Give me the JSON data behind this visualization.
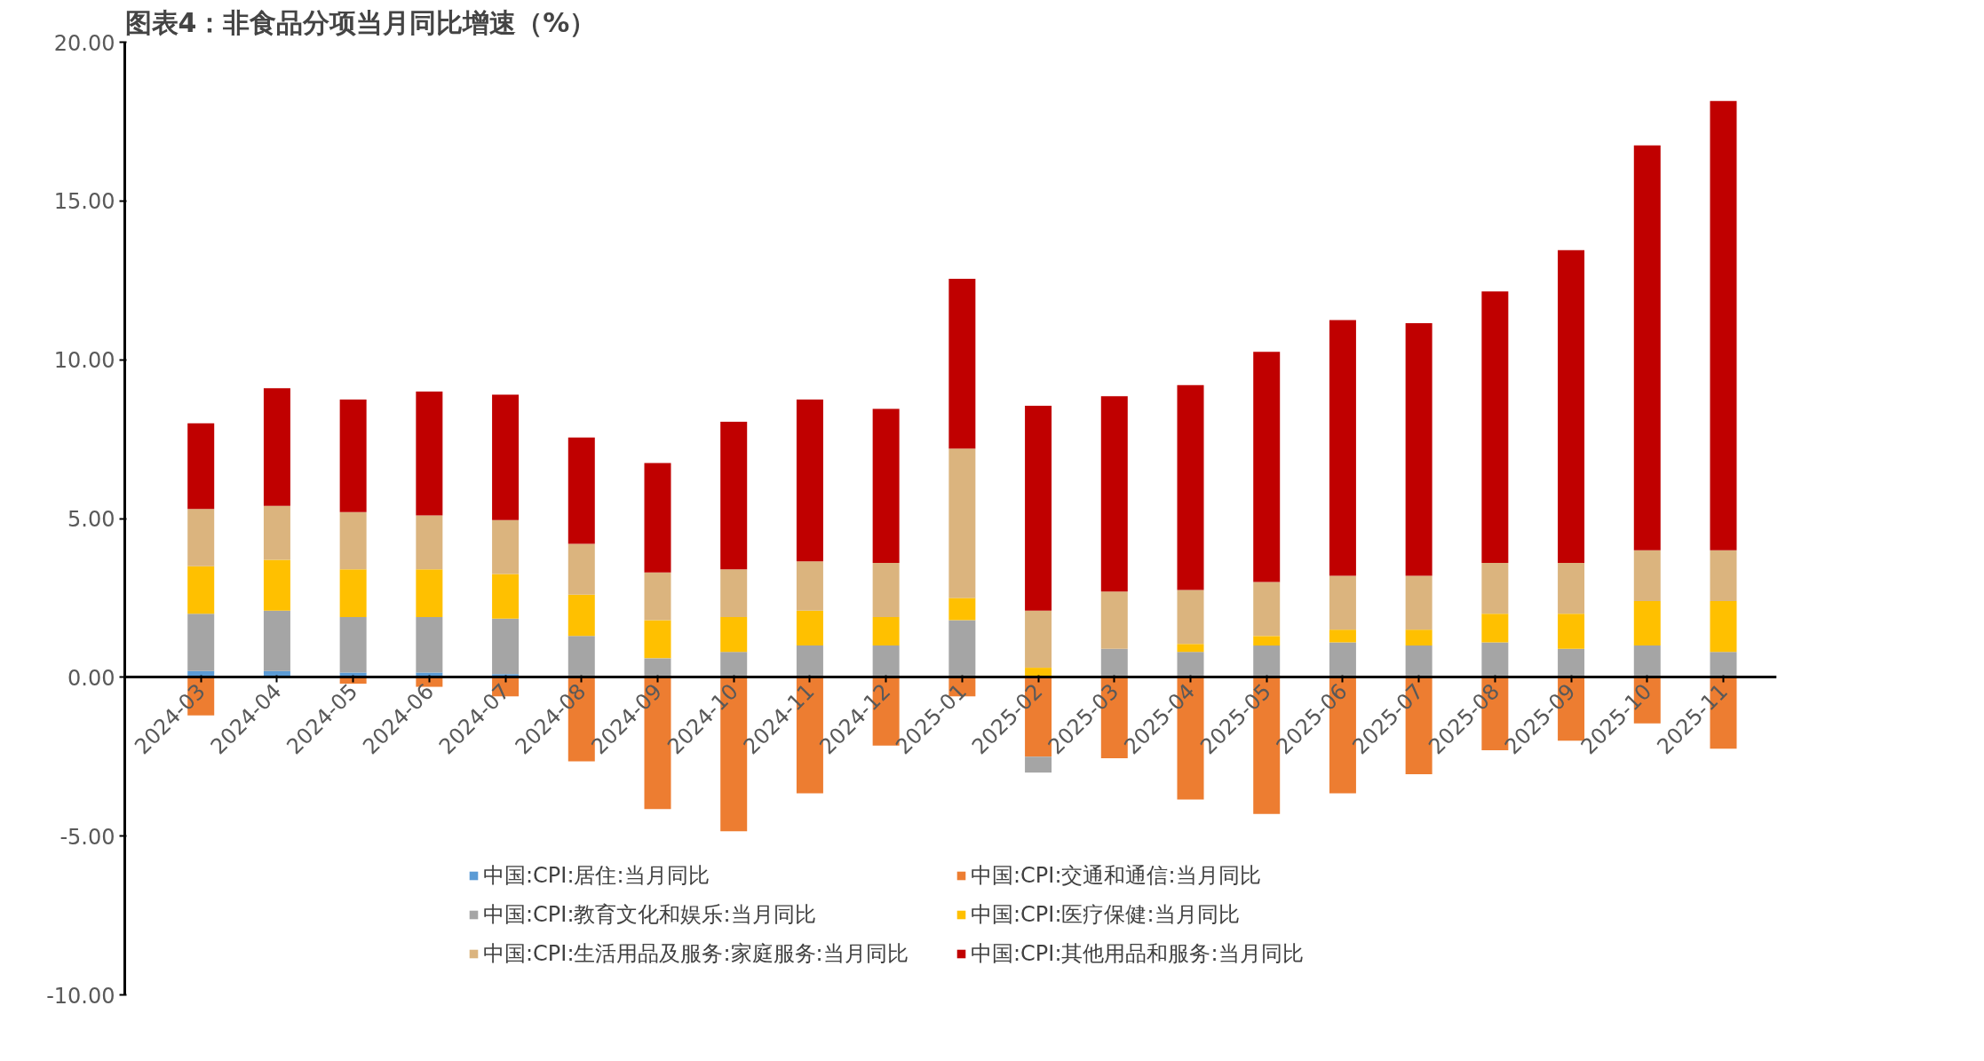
{
  "chart_data": {
    "type": "bar",
    "stacked": true,
    "title": "图表4：非食品分项当月同比增速（%）",
    "categories": [
      "2024-03",
      "2024-04",
      "2024-05",
      "2024-06",
      "2024-07",
      "2024-08",
      "2024-09",
      "2024-10",
      "2024-11",
      "2024-12",
      "2025-01",
      "2025-02",
      "2025-03",
      "2025-04",
      "2025-05",
      "2025-06",
      "2025-07",
      "2025-08",
      "2025-09",
      "2025-10",
      "2025-11"
    ],
    "series": [
      {
        "name": "中国:CPI:居住:当月同比",
        "color": "#5b9bd5",
        "values": [
          0.2,
          0.2,
          0.15,
          0.15,
          0.1,
          null,
          null,
          null,
          null,
          null,
          null,
          null,
          null,
          null,
          null,
          null,
          null,
          null,
          null,
          null,
          null
        ]
      },
      {
        "name": "中国:CPI:交通和通信:当月同比",
        "color": "#ed7d31",
        "values": [
          -1.2,
          null,
          -0.2,
          -0.3,
          -0.6,
          -2.65,
          -4.15,
          -4.85,
          -3.65,
          -2.15,
          -0.6,
          -2.5,
          -2.55,
          -3.85,
          -4.3,
          -3.65,
          -3.05,
          -2.3,
          -2.0,
          -1.45,
          -2.25
        ]
      },
      {
        "name": "中国:CPI:教育文化和娱乐:当月同比",
        "color": "#a5a5a5",
        "values": [
          1.8,
          1.9,
          1.75,
          1.75,
          1.75,
          1.3,
          0.6,
          0.8,
          1.0,
          1.0,
          1.8,
          -0.5,
          0.9,
          0.8,
          1.0,
          1.1,
          1.0,
          1.1,
          0.9,
          1.0,
          0.8
        ]
      },
      {
        "name": "中国:CPI:医疗保健:当月同比",
        "color": "#ffc000",
        "values": [
          1.5,
          1.6,
          1.5,
          1.5,
          1.4,
          1.3,
          1.2,
          1.1,
          1.1,
          0.9,
          0.7,
          0.3,
          null,
          0.25,
          0.3,
          0.4,
          0.5,
          0.9,
          1.1,
          1.4,
          1.6
        ]
      },
      {
        "name": "中国:CPI:生活用品及服务:家庭服务:当月同比",
        "color": "#dbb47e",
        "values": [
          1.8,
          1.7,
          1.8,
          1.7,
          1.7,
          1.6,
          1.5,
          1.5,
          1.55,
          1.7,
          4.7,
          1.8,
          1.8,
          1.7,
          1.7,
          1.7,
          1.7,
          1.6,
          1.6,
          1.6,
          1.6
        ]
      },
      {
        "name": "中国:CPI:其他用品和服务:当月同比",
        "color": "#c00000",
        "values": [
          2.7,
          3.7,
          3.55,
          3.9,
          3.95,
          3.35,
          3.45,
          4.65,
          5.1,
          4.85,
          5.35,
          6.45,
          6.15,
          6.45,
          7.25,
          8.05,
          7.95,
          8.55,
          9.85,
          12.75,
          14.15
        ]
      }
    ],
    "ylim": [
      -10,
      20
    ],
    "yticks": [
      {
        "value": -10,
        "label": "-10.00"
      },
      {
        "value": -5,
        "label": "-5.00"
      },
      {
        "value": 0,
        "label": "0.00"
      },
      {
        "value": 5,
        "label": "5.00"
      },
      {
        "value": 10,
        "label": "10.00"
      },
      {
        "value": 15,
        "label": "15.00"
      },
      {
        "value": 20,
        "label": "20.00"
      }
    ],
    "grid": false,
    "legend": "bottom"
  }
}
